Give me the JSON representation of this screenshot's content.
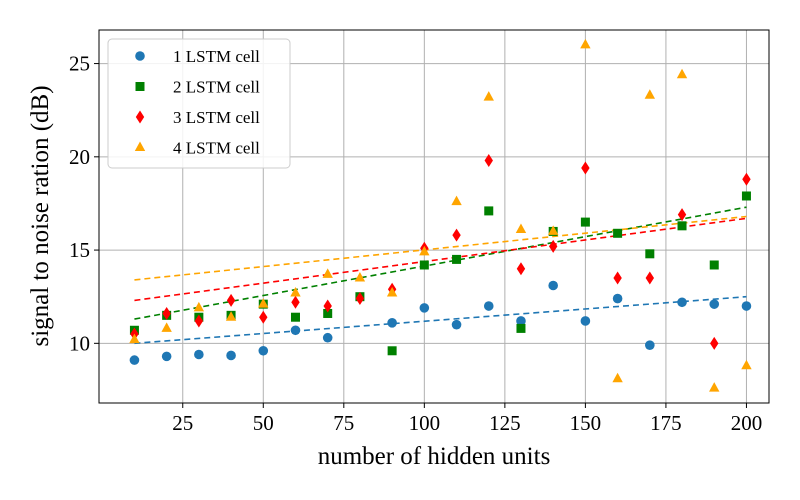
{
  "chart_data": {
    "type": "scatter",
    "title": "",
    "xlabel": "number of hidden units",
    "ylabel": "signal to noise ration (dB)",
    "xlim": [
      -1,
      207
    ],
    "ylim": [
      6.8,
      26.8
    ],
    "xticks": [
      25,
      50,
      75,
      100,
      125,
      150,
      175,
      200
    ],
    "yticks": [
      10,
      15,
      20,
      25
    ],
    "grid": true,
    "legend_position": "top-left",
    "series": [
      {
        "name": "1 LSTM cell",
        "color": "#1f77b4",
        "marker": "circle",
        "x": [
          10,
          20,
          30,
          40,
          50,
          60,
          70,
          90,
          100,
          110,
          120,
          130,
          140,
          150,
          160,
          170,
          180,
          190,
          200
        ],
        "y": [
          9.1,
          9.3,
          9.4,
          9.35,
          9.6,
          10.7,
          10.3,
          11.1,
          11.9,
          11.0,
          12.0,
          11.2,
          13.1,
          11.2,
          12.4,
          9.9,
          12.2,
          12.1,
          12.0
        ],
        "trend": [
          10.0,
          12.5
        ]
      },
      {
        "name": "2 LSTM cell",
        "color": "#008000",
        "marker": "square",
        "x": [
          10,
          20,
          30,
          40,
          50,
          60,
          70,
          80,
          90,
          100,
          110,
          120,
          130,
          140,
          150,
          160,
          170,
          180,
          190,
          200
        ],
        "y": [
          10.7,
          11.5,
          11.4,
          11.5,
          12.1,
          11.4,
          11.6,
          12.5,
          9.6,
          14.2,
          14.5,
          17.1,
          10.8,
          16.0,
          16.5,
          15.9,
          14.8,
          16.3,
          14.2,
          17.9
        ],
        "trend": [
          11.3,
          17.3
        ]
      },
      {
        "name": "3 LSTM cell",
        "color": "#ff0000",
        "marker": "diamond",
        "x": [
          10,
          20,
          30,
          40,
          50,
          60,
          70,
          80,
          90,
          100,
          110,
          120,
          130,
          140,
          150,
          160,
          170,
          180,
          190,
          200
        ],
        "y": [
          10.5,
          11.6,
          11.2,
          12.3,
          11.4,
          12.2,
          12.0,
          12.4,
          12.9,
          15.1,
          15.8,
          19.8,
          14.0,
          15.2,
          19.4,
          13.5,
          13.5,
          16.9,
          10.0,
          18.8
        ],
        "trend": [
          12.3,
          16.7
        ]
      },
      {
        "name": "4 LSTM cell",
        "color": "#ffa500",
        "marker": "triangle",
        "x": [
          10,
          20,
          30,
          40,
          50,
          60,
          70,
          80,
          90,
          100,
          110,
          120,
          130,
          140,
          150,
          160,
          170,
          180,
          190,
          200
        ],
        "y": [
          10.2,
          10.8,
          11.9,
          11.4,
          12.1,
          12.7,
          13.7,
          13.5,
          12.7,
          14.9,
          17.6,
          23.2,
          16.1,
          16.0,
          26.0,
          8.1,
          23.3,
          24.4,
          7.6,
          8.8
        ],
        "trend": [
          13.4,
          16.8
        ]
      }
    ]
  }
}
